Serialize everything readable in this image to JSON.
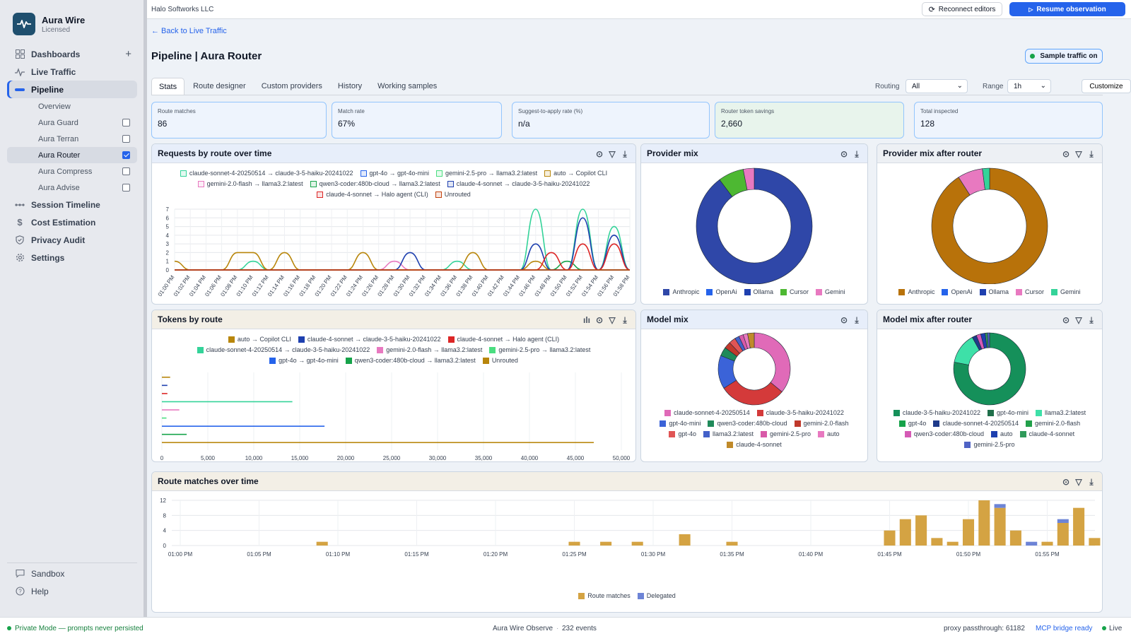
{
  "app": {
    "name": "Aura Wire",
    "license": "Licensed",
    "org": "Halo Softworks LLC"
  },
  "sidebar": {
    "items": [
      {
        "label": "Dashboards",
        "icon": "grid-icon"
      },
      {
        "label": "Live Traffic",
        "icon": "activity-icon"
      },
      {
        "label": "Pipeline",
        "icon": "pipeline-icon"
      }
    ],
    "pipeline_sub": [
      {
        "label": "Overview",
        "checkbox": null
      },
      {
        "label": "Aura Guard",
        "checkbox": false
      },
      {
        "label": "Aura Terran",
        "checkbox": false
      },
      {
        "label": "Aura Router",
        "checkbox": true
      },
      {
        "label": "Aura Compress",
        "checkbox": false
      },
      {
        "label": "Aura Advise",
        "checkbox": false
      }
    ],
    "items2": [
      {
        "label": "Session Timeline",
        "icon": "timeline-icon"
      },
      {
        "label": "Cost Estimation",
        "icon": "dollar-icon"
      },
      {
        "label": "Privacy Audit",
        "icon": "shield-icon"
      },
      {
        "label": "Settings",
        "icon": "gear-icon"
      }
    ],
    "bottom": [
      {
        "label": "Sandbox",
        "icon": "chat-icon"
      },
      {
        "label": "Help",
        "icon": "help-icon"
      }
    ]
  },
  "topbar": {
    "reconnect": "Reconnect editors",
    "resume": "Resume observation"
  },
  "page": {
    "back": "← Back to Live Traffic",
    "title": "Pipeline | Aura Router",
    "sample_badge": "Sample traffic on",
    "tabs": [
      "Stats",
      "Route designer",
      "Custom providers",
      "History",
      "Working samples"
    ],
    "routing_label": "Routing",
    "routing_value": "All",
    "range_label": "Range",
    "range_value": "1h",
    "customize": "Customize"
  },
  "stats": [
    {
      "label": "Route matches",
      "value": "86"
    },
    {
      "label": "Match rate",
      "value": "67%"
    },
    {
      "label": "Suggest-to-apply rate (%)",
      "value": "n/a"
    },
    {
      "label": "Router token savings",
      "value": "2,660"
    },
    {
      "label": "Total inspected",
      "value": "128"
    }
  ],
  "colors": {
    "sonnet45_haiku": "#34d399",
    "gpt4o_mini": "#2563eb",
    "gemini25_llama": "#4ade80",
    "auto_copilot": "#b8860b",
    "gemini20_llama": "#e879c0",
    "qwen_llama": "#16a34a",
    "sonnet4_haiku": "#1e40af",
    "sonnet4_halo": "#dc2626",
    "unrouted": "#c2410c"
  },
  "chart_data": [
    {
      "type": "line",
      "title": "Requests by route over time",
      "ylim": [
        0,
        7
      ],
      "yticks": [
        0,
        1,
        2,
        3,
        4,
        5,
        6,
        7
      ],
      "x": [
        "01:00 PM",
        "01:02 PM",
        "01:04 PM",
        "01:06 PM",
        "01:08 PM",
        "01:10 PM",
        "01:12 PM",
        "01:14 PM",
        "01:16 PM",
        "01:18 PM",
        "01:20 PM",
        "01:22 PM",
        "01:24 PM",
        "01:26 PM",
        "01:28 PM",
        "01:30 PM",
        "01:32 PM",
        "01:34 PM",
        "01:36 PM",
        "01:38 PM",
        "01:40 PM",
        "01:42 PM",
        "01:44 PM",
        "01:46 PM",
        "01:48 PM",
        "01:50 PM",
        "01:52 PM",
        "01:54 PM",
        "01:56 PM",
        "01:58 PM"
      ],
      "series": [
        {
          "name": "claude-sonnet-4-20250514 → claude-3-5-haiku-20241022",
          "color": "#34d399",
          "values": [
            0,
            0,
            0,
            0,
            0,
            1,
            0,
            0,
            0,
            0,
            0,
            0,
            0,
            0,
            0,
            0,
            0,
            0,
            1,
            0,
            0,
            0,
            0,
            7,
            0,
            0,
            7,
            0,
            5,
            0
          ]
        },
        {
          "name": "gpt-4o → gpt-4o-mini",
          "color": "#2563eb",
          "values": [
            0,
            0,
            0,
            0,
            0,
            0,
            0,
            0,
            0,
            0,
            0,
            0,
            0,
            0,
            0,
            0,
            0,
            0,
            0,
            0,
            0,
            0,
            0,
            0,
            0,
            0,
            0,
            0,
            0,
            0
          ]
        },
        {
          "name": "gemini-2.5-pro → llama3.2:latest",
          "color": "#4ade80",
          "values": [
            0,
            0,
            0,
            0,
            0,
            0,
            0,
            0,
            0,
            0,
            0,
            0,
            0,
            0,
            0,
            0,
            0,
            0,
            0,
            0,
            0,
            0,
            0,
            0,
            0,
            0,
            0,
            0,
            0,
            0
          ]
        },
        {
          "name": "auto → Copilot CLI",
          "color": "#b8860b",
          "values": [
            1,
            0,
            0,
            0,
            2,
            2,
            0,
            2,
            0,
            0,
            0,
            0,
            2,
            0,
            0,
            0,
            0,
            0,
            0,
            2,
            0,
            0,
            0,
            1,
            0,
            0,
            0,
            0,
            0,
            0
          ]
        },
        {
          "name": "gemini-2.0-flash → llama3.2:latest",
          "color": "#e879c0",
          "values": [
            0,
            0,
            0,
            0,
            0,
            0,
            0,
            0,
            0,
            0,
            0,
            0,
            0,
            0,
            1,
            0,
            0,
            0,
            0,
            0,
            0,
            0,
            0,
            0,
            0,
            0,
            0,
            0,
            0,
            0
          ]
        },
        {
          "name": "qwen3-coder:480b-cloud → llama3.2:latest",
          "color": "#16a34a",
          "values": [
            0,
            0,
            0,
            0,
            0,
            0,
            0,
            0,
            0,
            0,
            0,
            0,
            0,
            0,
            0,
            0,
            0,
            0,
            0,
            0,
            0,
            0,
            0,
            0,
            0,
            1,
            0,
            0,
            0,
            0
          ]
        },
        {
          "name": "claude-4-sonnet → claude-3-5-haiku-20241022",
          "color": "#1e40af",
          "values": [
            0,
            0,
            0,
            0,
            0,
            0,
            0,
            0,
            0,
            0,
            0,
            0,
            0,
            0,
            0,
            2,
            0,
            0,
            0,
            0,
            0,
            0,
            0,
            3,
            0,
            0,
            6,
            0,
            4,
            0
          ]
        },
        {
          "name": "claude-4-sonnet → Halo agent (CLI)",
          "color": "#dc2626",
          "values": [
            0,
            0,
            0,
            0,
            0,
            0,
            0,
            0,
            0,
            0,
            0,
            0,
            0,
            0,
            0,
            0,
            0,
            0,
            0,
            0,
            0,
            0,
            0,
            0,
            2,
            0,
            3,
            0,
            3,
            0
          ]
        },
        {
          "name": "Unrouted",
          "color": "#c2410c",
          "values": [
            0,
            0,
            0,
            0,
            0,
            0,
            0,
            0,
            0,
            0,
            0,
            0,
            0,
            0,
            0,
            0,
            0,
            0,
            0,
            0,
            0,
            0,
            0,
            0,
            0,
            0,
            0,
            0,
            0,
            0
          ]
        }
      ]
    },
    {
      "type": "bar",
      "title": "Tokens by route",
      "orientation": "horizontal",
      "xlim": [
        0,
        50000
      ],
      "xticks": [
        "0",
        "5,000",
        "10,000",
        "15,000",
        "20,000",
        "25,000",
        "30,000",
        "35,000",
        "40,000",
        "45,000",
        "50,000"
      ],
      "series": [
        {
          "name": "auto → Copilot CLI",
          "color": "#b8860b",
          "value": 900
        },
        {
          "name": "claude-4-sonnet → claude-3-5-haiku-20241022",
          "color": "#1e40af",
          "value": 600
        },
        {
          "name": "claude-4-sonnet → Halo agent (CLI)",
          "color": "#dc2626",
          "value": 600
        },
        {
          "name": "claude-sonnet-4-20250514 → claude-3-5-haiku-20241022",
          "color": "#34d399",
          "value": 14200
        },
        {
          "name": "gemini-2.0-flash → llama3.2:latest",
          "color": "#e879c0",
          "value": 1900
        },
        {
          "name": "gemini-2.5-pro → llama3.2:latest",
          "color": "#4ade80",
          "value": 500
        },
        {
          "name": "gpt-4o → gpt-4o-mini",
          "color": "#2563eb",
          "value": 17700
        },
        {
          "name": "qwen3-coder:480b-cloud → llama3.2:latest",
          "color": "#16a34a",
          "value": 2700
        },
        {
          "name": "Unrouted",
          "color": "#b8860b",
          "value": 47000
        }
      ]
    },
    {
      "type": "pie",
      "title": "Provider mix",
      "slices": [
        {
          "name": "Anthropic",
          "color": "#2f47a8",
          "value": 88
        },
        {
          "name": "OpenAi",
          "color": "#2563eb",
          "value": 0
        },
        {
          "name": "Ollama",
          "color": "#1e40af",
          "value": 0
        },
        {
          "name": "Cursor",
          "color": "#4db832",
          "value": 7
        },
        {
          "name": "Gemini",
          "color": "#e879c0",
          "value": 3
        }
      ]
    },
    {
      "type": "pie",
      "title": "Provider mix after router",
      "slices": [
        {
          "name": "Anthropic",
          "color": "#b8720a",
          "value": 91
        },
        {
          "name": "OpenAi",
          "color": "#2563eb",
          "value": 0
        },
        {
          "name": "Ollama",
          "color": "#1e40af",
          "value": 0
        },
        {
          "name": "Cursor",
          "color": "#e879c0",
          "value": 7
        },
        {
          "name": "Gemini",
          "color": "#34d399",
          "value": 2
        }
      ]
    },
    {
      "type": "pie",
      "title": "Model mix",
      "slices": [
        {
          "name": "claude-sonnet-4-20250514",
          "color": "#e06ab8",
          "value": 36
        },
        {
          "name": "claude-3-5-haiku-20241022",
          "color": "#d43a3a",
          "value": 30
        },
        {
          "name": "gpt-4o-mini",
          "color": "#3b63d8",
          "value": 15
        },
        {
          "name": "qwen3-coder:480b-cloud",
          "color": "#1f8a5a",
          "value": 4
        },
        {
          "name": "gemini-2.0-flash",
          "color": "#c0392b",
          "value": 3
        },
        {
          "name": "gpt-4o",
          "color": "#e05555",
          "value": 3
        },
        {
          "name": "llama3.2:latest",
          "color": "#4361c9",
          "value": 2
        },
        {
          "name": "gemini-2.5-pro",
          "color": "#d85aa8",
          "value": 2
        },
        {
          "name": "auto",
          "color": "#e879c0",
          "value": 2
        },
        {
          "name": "claude-4-sonnet",
          "color": "#c08a2a",
          "value": 3
        }
      ]
    },
    {
      "type": "pie",
      "title": "Model mix after router",
      "slices": [
        {
          "name": "claude-3-5-haiku-20241022",
          "color": "#15905a",
          "value": 78
        },
        {
          "name": "gpt-4o-mini",
          "color": "#1f6f4a",
          "value": 0
        },
        {
          "name": "llama3.2:latest",
          "color": "#3ee0a8",
          "value": 14
        },
        {
          "name": "gpt-4o",
          "color": "#16a34a",
          "value": 0
        },
        {
          "name": "claude-sonnet-4-20250514",
          "color": "#1e3a8a",
          "value": 2
        },
        {
          "name": "gemini-2.0-flash",
          "color": "#22a04a",
          "value": 0
        },
        {
          "name": "qwen3-coder:480b-cloud",
          "color": "#d55ab5",
          "value": 2
        },
        {
          "name": "auto",
          "color": "#1e40af",
          "value": 2
        },
        {
          "name": "claude-4-sonnet",
          "color": "#2f9a5a",
          "value": 1
        },
        {
          "name": "gemini-2.5-pro",
          "color": "#4f63c5",
          "value": 1
        }
      ]
    },
    {
      "type": "bar",
      "title": "Route matches over time",
      "stacked": true,
      "ylim": [
        0,
        12
      ],
      "yticks": [
        0,
        4,
        8,
        12
      ],
      "xticks": [
        "01:00 PM",
        "01:05 PM",
        "01:10 PM",
        "01:15 PM",
        "01:20 PM",
        "01:25 PM",
        "01:30 PM",
        "01:35 PM",
        "01:40 PM",
        "01:45 PM",
        "01:50 PM",
        "01:55 PM"
      ],
      "series": [
        {
          "name": "Route matches",
          "color": "#d4a343",
          "values": [
            0,
            0,
            0,
            0,
            0,
            0,
            0,
            0,
            0,
            1,
            0,
            0,
            0,
            0,
            0,
            0,
            0,
            0,
            0,
            0,
            0,
            0,
            0,
            0,
            0,
            1,
            0,
            1,
            0,
            1,
            0,
            0,
            3,
            0,
            0,
            1,
            0,
            0,
            0,
            0,
            0,
            0,
            0,
            0,
            0,
            4,
            7,
            8,
            2,
            1,
            7,
            12,
            10,
            4,
            0,
            1,
            6,
            10,
            2
          ]
        },
        {
          "name": "Delegated",
          "color": "#6d84d6",
          "values": [
            0,
            0,
            0,
            0,
            0,
            0,
            0,
            0,
            0,
            0,
            0,
            0,
            0,
            0,
            0,
            0,
            0,
            0,
            0,
            0,
            0,
            0,
            0,
            0,
            0,
            0,
            0,
            0,
            0,
            0,
            0,
            0,
            0,
            0,
            0,
            0,
            0,
            0,
            0,
            0,
            0,
            0,
            0,
            0,
            0,
            0,
            0,
            0,
            0,
            0,
            0,
            0,
            1,
            0,
            1,
            0,
            1,
            0,
            0
          ]
        }
      ]
    }
  ],
  "statusbar": {
    "private": "Private Mode — prompts never persisted",
    "app": "Aura Wire Observe",
    "events": "232 events",
    "proxy": "proxy passthrough: 61182",
    "mcp": "MCP bridge ready",
    "live": "Live"
  }
}
